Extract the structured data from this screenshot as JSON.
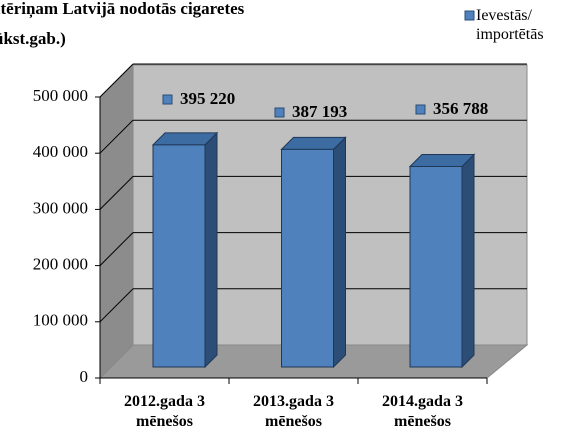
{
  "chart_data": {
    "type": "bar3d",
    "title": [
      "atēriņam Latvijā nodotās cigaretes",
      "ūkst.gab.)"
    ],
    "categories": [
      "2012.gada 3 mēnešos",
      "2013.gada 3 mēnešos",
      "2014.gada 3 mēnešos"
    ],
    "series": [
      {
        "name": "Ievestās/ importētās",
        "color": "#4f81bd",
        "values": [
          395220,
          387193,
          356788
        ],
        "value_labels": [
          "395 220",
          "387 193",
          "356 788"
        ]
      }
    ],
    "ylim": [
      0,
      500000
    ],
    "yticks": [
      0,
      {
        "value": 100000,
        "label": "100 000"
      },
      {
        "value": 200000,
        "label": "200 000"
      },
      {
        "value": 300000,
        "label": "300 000"
      },
      {
        "value": 400000,
        "label": "400 000"
      },
      {
        "value": 500000,
        "label": "500 000"
      }
    ],
    "grid": true,
    "legend": "top-right"
  }
}
